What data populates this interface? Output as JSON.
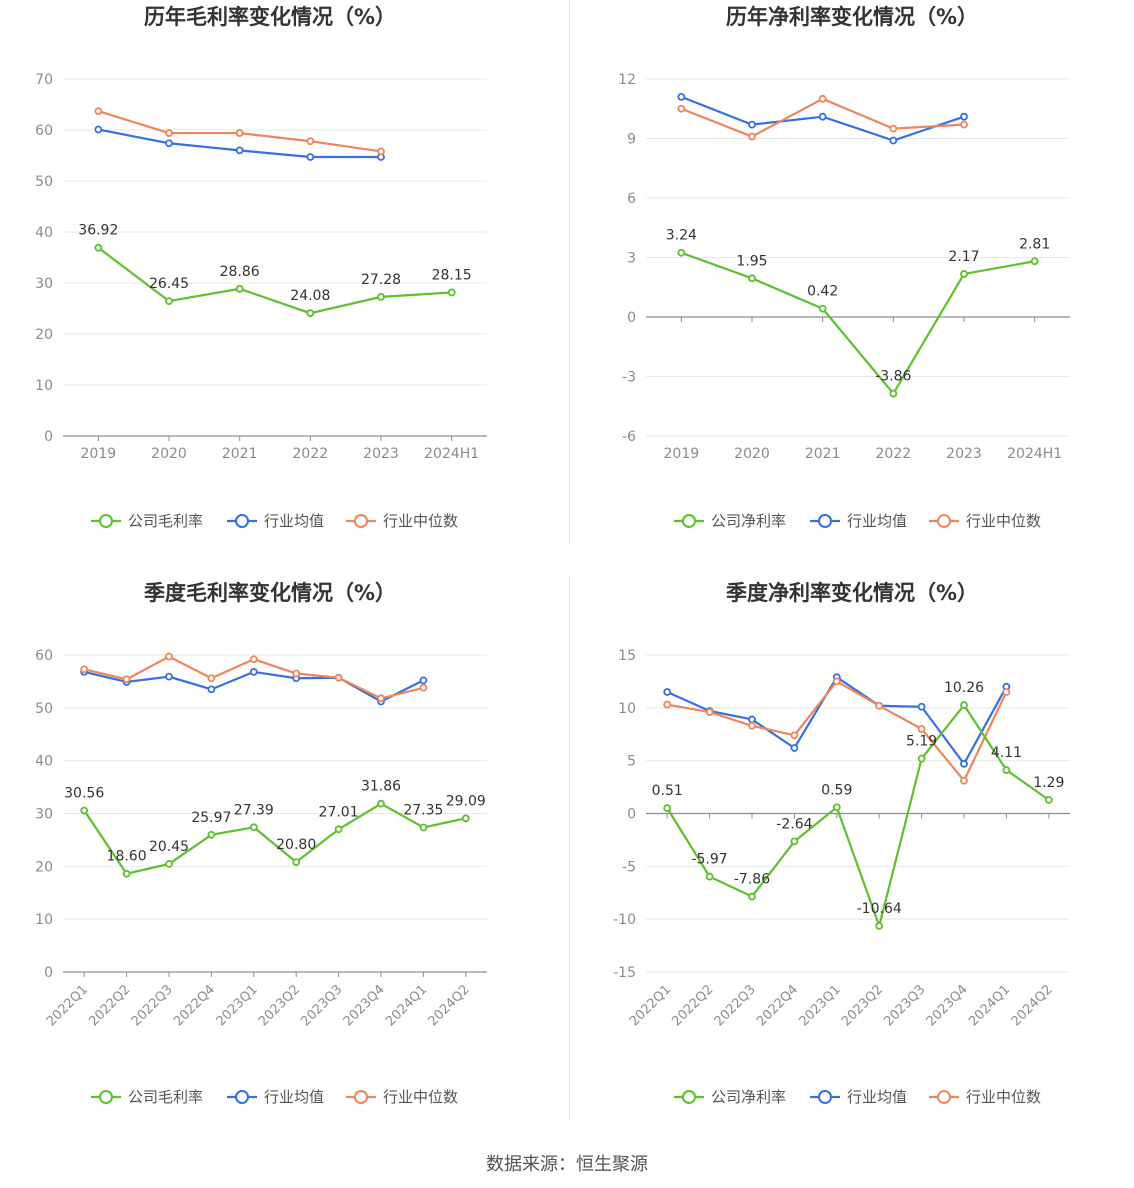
{
  "source": "数据来源：恒生聚源",
  "legend_labels": {
    "company_gross": "公司毛利率",
    "company_net": "公司净利率",
    "avg": "行业均值",
    "median": "行业中位数"
  },
  "colors": {
    "company": "#5cc12a",
    "avg": "#3670e0",
    "median": "#f0845a",
    "grid": "#e5e8ee",
    "axis": "#8c8c99",
    "tick": "#8c8c8c",
    "label": "#333333"
  },
  "chart_data": [
    {
      "type": "line",
      "title": "历年毛利率变化情况（%）",
      "categories": [
        "2019",
        "2020",
        "2021",
        "2022",
        "2023",
        "2024H1"
      ],
      "ylim": [
        0,
        70
      ],
      "yticks": [
        0,
        10,
        20,
        30,
        40,
        50,
        60,
        70
      ],
      "grid": true,
      "legend_position": "bottom",
      "rotate_x_labels": false,
      "series": [
        {
          "name": "公司毛利率",
          "values": [
            36.92,
            26.45,
            28.86,
            24.08,
            27.28,
            28.15
          ],
          "labels": [
            "36.92",
            "26.45",
            "28.86",
            "24.08",
            "27.28",
            "28.15"
          ]
        },
        {
          "name": "行业均值",
          "values": [
            60.1,
            57.4,
            56.0,
            54.7,
            54.7,
            null
          ]
        },
        {
          "name": "行业中位数",
          "values": [
            63.7,
            59.4,
            59.4,
            57.8,
            55.8,
            null
          ]
        }
      ]
    },
    {
      "type": "line",
      "title": "历年净利率变化情况（%）",
      "categories": [
        "2019",
        "2020",
        "2021",
        "2022",
        "2023",
        "2024H1"
      ],
      "ylim": [
        -6,
        12
      ],
      "yticks": [
        -6,
        -3,
        0,
        3,
        6,
        9,
        12
      ],
      "grid": true,
      "legend_position": "bottom",
      "rotate_x_labels": false,
      "series": [
        {
          "name": "公司净利率",
          "values": [
            3.24,
            1.95,
            0.42,
            -3.86,
            2.17,
            2.81
          ],
          "labels": [
            "3.24",
            "1.95",
            "0.42",
            "-3.86",
            "2.17",
            "2.81"
          ]
        },
        {
          "name": "行业均值",
          "values": [
            11.1,
            9.7,
            10.1,
            8.9,
            10.1,
            null
          ]
        },
        {
          "name": "行业中位数",
          "values": [
            10.5,
            9.1,
            11.0,
            9.5,
            9.7,
            null
          ]
        }
      ]
    },
    {
      "type": "line",
      "title": "季度毛利率变化情况（%）",
      "categories": [
        "2022Q1",
        "2022Q2",
        "2022Q3",
        "2022Q4",
        "2023Q1",
        "2023Q2",
        "2023Q3",
        "2023Q4",
        "2024Q1",
        "2024Q2"
      ],
      "ylim": [
        0,
        60
      ],
      "yticks": [
        0,
        10,
        20,
        30,
        40,
        50,
        60
      ],
      "grid": true,
      "legend_position": "bottom",
      "rotate_x_labels": true,
      "series": [
        {
          "name": "公司毛利率",
          "values": [
            30.56,
            18.6,
            20.45,
            25.97,
            27.39,
            20.8,
            27.01,
            31.86,
            27.35,
            29.09
          ],
          "labels": [
            "30.56",
            "18.60",
            "20.45",
            "25.97",
            "27.39",
            "20.80",
            "27.01",
            "31.86",
            "27.35",
            "29.09"
          ]
        },
        {
          "name": "行业均值",
          "values": [
            56.8,
            54.9,
            55.9,
            53.5,
            56.8,
            55.6,
            55.7,
            51.2,
            55.2,
            null
          ]
        },
        {
          "name": "行业中位数",
          "values": [
            57.3,
            55.4,
            59.7,
            55.6,
            59.2,
            56.5,
            55.7,
            51.8,
            53.8,
            null
          ]
        }
      ]
    },
    {
      "type": "line",
      "title": "季度净利率变化情况（%）",
      "categories": [
        "2022Q1",
        "2022Q2",
        "2022Q3",
        "2022Q4",
        "2023Q1",
        "2023Q2",
        "2023Q3",
        "2023Q4",
        "2024Q1",
        "2024Q2"
      ],
      "ylim": [
        -15,
        15
      ],
      "yticks": [
        -15,
        -10,
        -5,
        0,
        5,
        10,
        15
      ],
      "grid": true,
      "legend_position": "bottom",
      "rotate_x_labels": true,
      "series": [
        {
          "name": "公司净利率",
          "values": [
            0.51,
            -5.97,
            -7.86,
            -2.64,
            0.59,
            -10.64,
            5.19,
            10.26,
            4.11,
            1.29
          ],
          "labels": [
            "0.51",
            "-5.97",
            "-7.86",
            "-2.64",
            "0.59",
            "-10.64",
            "5.19",
            "10.26",
            "4.11",
            "1.29"
          ]
        },
        {
          "name": "行业均值",
          "values": [
            11.5,
            9.7,
            8.9,
            6.2,
            12.9,
            10.2,
            10.1,
            4.7,
            12.0,
            null
          ]
        },
        {
          "name": "行业中位数",
          "values": [
            10.3,
            9.6,
            8.3,
            7.4,
            12.5,
            10.2,
            8.0,
            3.1,
            11.5,
            null
          ]
        }
      ]
    }
  ]
}
